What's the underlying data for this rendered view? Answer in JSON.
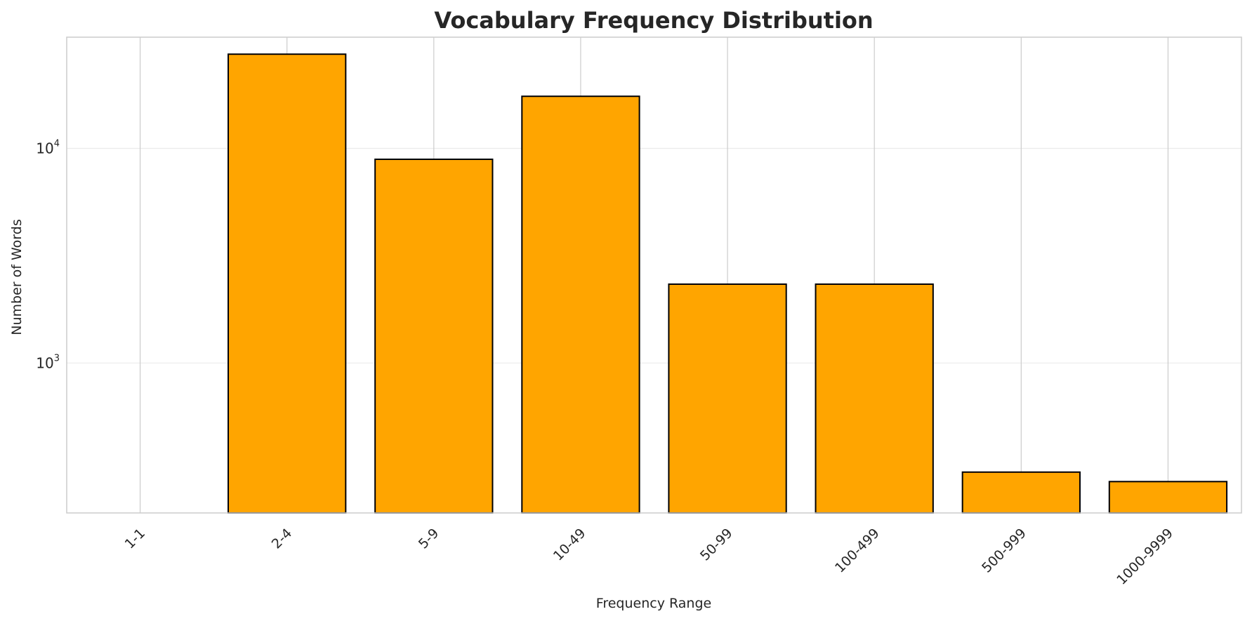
{
  "chart_data": {
    "type": "bar",
    "title": "Vocabulary Frequency Distribution",
    "xlabel": "Frequency Range",
    "ylabel": "Number of Words",
    "yscale": "log",
    "ylim": [
      200,
      33000
    ],
    "categories": [
      "1-1",
      "2-4",
      "5-9",
      "10-49",
      "50-99",
      "100-499",
      "500-999",
      "1000-9999"
    ],
    "values": [
      0,
      27500,
      8900,
      17500,
      2330,
      2330,
      310,
      280
    ],
    "y_ticks": [
      {
        "base": "10",
        "exp": "3",
        "value": 1000
      },
      {
        "base": "10",
        "exp": "4",
        "value": 10000
      }
    ],
    "grid": true,
    "bar_color": "#FFA500",
    "bar_edge_color": "#000000",
    "tick_rotation": 45
  }
}
